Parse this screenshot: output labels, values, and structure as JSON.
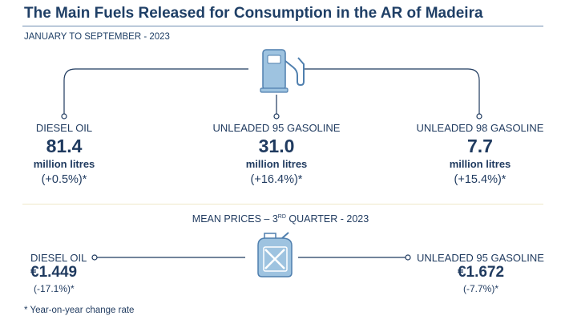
{
  "header": {
    "title": "The Main Fuels Released for Consumption in the AR of Madeira",
    "subtitle": "JANUARY TO SEPTEMBER - 2023"
  },
  "chart_data": {
    "type": "table",
    "consumption": [
      {
        "name": "DIESEL OIL",
        "value": "81.4",
        "unit": "million litres",
        "change": "(+0.5%)*"
      },
      {
        "name": "UNLEADED 95 GASOLINE",
        "value": "31.0",
        "unit": "million litres",
        "change": "(+16.4%)*"
      },
      {
        "name": "UNLEADED 98 GASOLINE",
        "value": "7.7",
        "unit": "million litres",
        "change": "(+15.4%)*"
      }
    ],
    "prices_title_pre": "MEAN PRICES – 3",
    "prices_title_sup": "RD",
    "prices_title_post": " QUARTER - 2023",
    "prices": [
      {
        "name": "DIESEL OIL",
        "value": "€1.449",
        "change": "(-17.1%)*"
      },
      {
        "name": "UNLEADED 95 GASOLINE",
        "value": "€1.672",
        "change": "(-7.7%)*"
      }
    ]
  },
  "footnote": "* Year-on-year change rate",
  "colors": {
    "navy": "#1f3a5f",
    "icon_fill": "#9ec3e0",
    "icon_stroke": "#4f7fae",
    "connector": "#1f3a5f"
  },
  "icons": {
    "top": "fuel-pump-icon",
    "bottom": "jerrycan-icon"
  }
}
